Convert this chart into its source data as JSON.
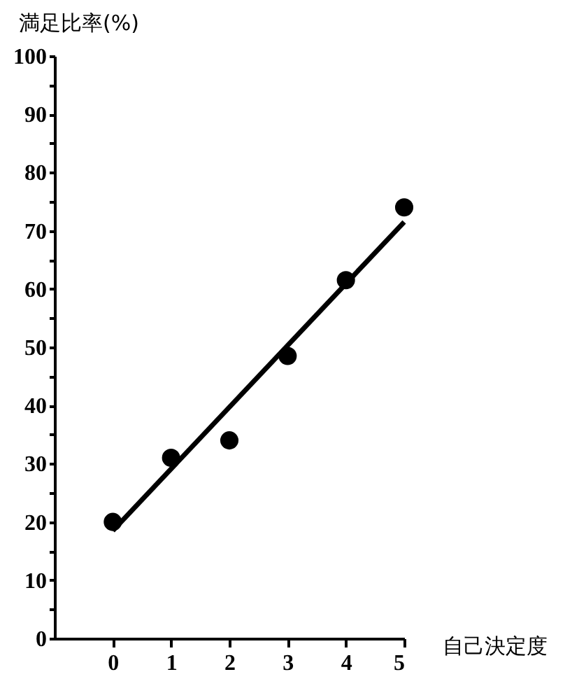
{
  "chart_data": {
    "type": "scatter",
    "xlabel": "自己決定度",
    "ylabel": "満足比率(%)",
    "xlim": [
      -1,
      5
    ],
    "xticks": [
      0,
      1,
      2,
      3,
      4,
      5
    ],
    "ylim": [
      0,
      100
    ],
    "yticks": [
      0,
      {
        "value": 5,
        "label": null
      },
      10,
      {
        "value": 15,
        "label": null
      },
      20,
      {
        "value": 25,
        "label": null
      },
      30,
      {
        "value": 35,
        "label": null
      },
      40,
      {
        "value": 45,
        "label": null
      },
      50,
      {
        "value": 55,
        "label": null
      },
      60,
      {
        "value": 65,
        "label": null
      },
      70,
      {
        "value": 75,
        "label": null
      },
      80,
      {
        "value": 85,
        "label": null
      },
      90,
      {
        "value": 95,
        "label": null
      },
      100
    ],
    "grid": false,
    "marker": "circle",
    "series": [
      {
        "color": "#000000",
        "x": [
          0,
          1,
          2,
          3,
          4,
          5
        ],
        "values": [
          20,
          31,
          34,
          48.5,
          61.5,
          74
        ]
      },
      {
        "type": "line",
        "color": "#000000",
        "x": [
          0,
          5
        ],
        "values": [
          18.5,
          71.5
        ],
        "marker": "none",
        "line_style": "solid"
      }
    ]
  }
}
